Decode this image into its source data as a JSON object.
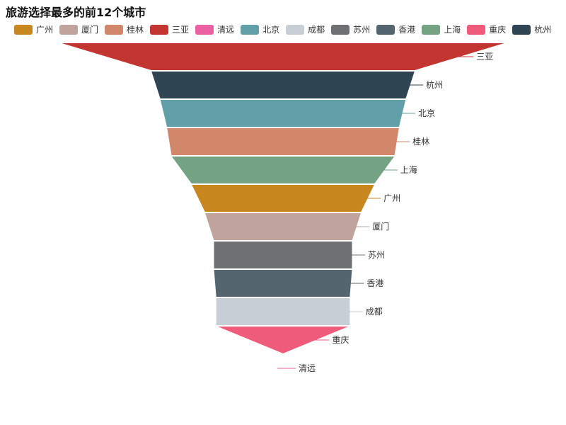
{
  "chart_data": {
    "type": "funnel",
    "title": "旅游选择最多的前12个城市",
    "legend_position": "top",
    "legend": [
      {
        "name": "广州",
        "color": "#c8861f"
      },
      {
        "name": "厦门",
        "color": "#bfa39c"
      },
      {
        "name": "桂林",
        "color": "#d2876b"
      },
      {
        "name": "三亚",
        "color": "#c23531"
      },
      {
        "name": "清远",
        "color": "#eb5fa3"
      },
      {
        "name": "北京",
        "color": "#61a0a8"
      },
      {
        "name": "成都",
        "color": "#c8ced6"
      },
      {
        "name": "苏州",
        "color": "#6e7074"
      },
      {
        "name": "香港",
        "color": "#546570"
      },
      {
        "name": "上海",
        "color": "#73a383"
      },
      {
        "name": "重庆",
        "color": "#ef5b7b"
      },
      {
        "name": "杭州",
        "color": "#2f4554"
      }
    ],
    "segments": [
      {
        "name": "三亚",
        "value": 100,
        "color": "#c23531"
      },
      {
        "name": "杭州",
        "value": 59,
        "color": "#2f4554"
      },
      {
        "name": "北京",
        "value": 55,
        "color": "#61a0a8"
      },
      {
        "name": "桂林",
        "value": 52,
        "color": "#d2876b"
      },
      {
        "name": "上海",
        "value": 50,
        "color": "#73a383"
      },
      {
        "name": "广州",
        "value": 41,
        "color": "#c8861f"
      },
      {
        "name": "厦门",
        "value": 35,
        "color": "#bfa39c"
      },
      {
        "name": "苏州",
        "value": 31,
        "color": "#6e7074"
      },
      {
        "name": "香港",
        "value": 31,
        "color": "#546570"
      },
      {
        "name": "成都",
        "value": 30,
        "color": "#c8ced6"
      },
      {
        "name": "重庆",
        "value": 30,
        "color": "#ef5b7b"
      },
      {
        "name": "清远",
        "value": 0,
        "color": "#eb5fa3"
      }
    ]
  }
}
